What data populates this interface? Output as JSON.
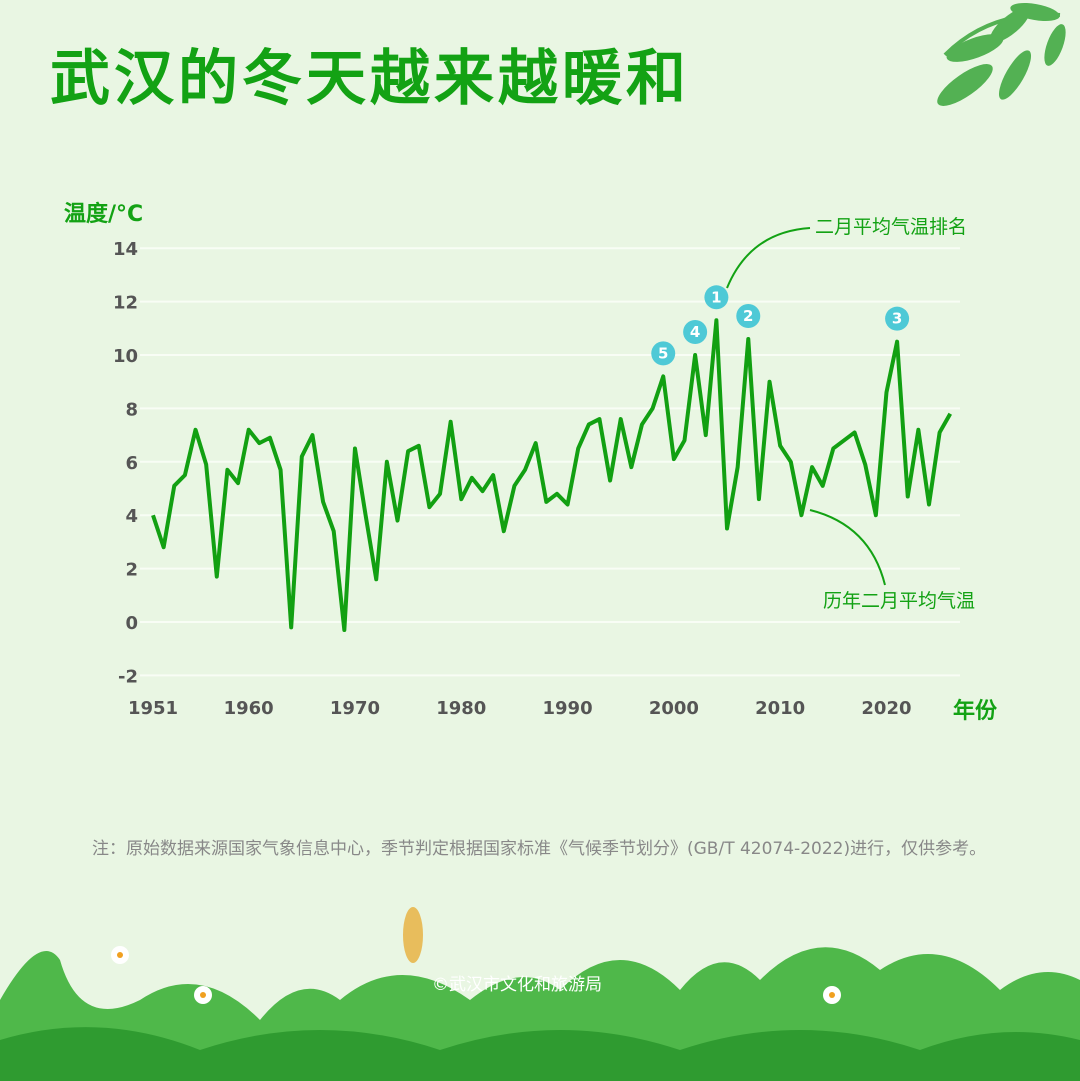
{
  "title": "武汉的冬天越来越暖和",
  "note": "注：原始数据来源国家气象信息中心，季节判定根据国家标准《气候季节划分》(GB/T 42074-2022)进行，仅供参考。",
  "credit": "©武汉市文化和旅游局",
  "colors": {
    "line": "#12a012",
    "rank": "#4ec9d6",
    "title": "#13a214"
  },
  "chart_data": {
    "type": "line",
    "title": "武汉的冬天越来越暖和",
    "xlabel": "年份",
    "ylabel": "温度/°C",
    "ylim": [
      -2,
      14
    ],
    "yticks": [
      "-2",
      "0",
      "2",
      "4",
      "6",
      "8",
      "10",
      "12",
      "14"
    ],
    "ytick_values": [
      -2,
      0,
      2,
      4,
      6,
      8,
      10,
      12,
      14
    ],
    "xticks": [
      "1951",
      "1960",
      "1970",
      "1980",
      "1990",
      "2000",
      "2010",
      "2020"
    ],
    "xtick_values": [
      1951,
      1960,
      1970,
      1980,
      1990,
      2000,
      2010,
      2020
    ],
    "grid": true,
    "series": [
      {
        "name": "历年二月平均气温",
        "x_start": 1951,
        "values": [
          4.0,
          2.8,
          5.1,
          5.5,
          7.2,
          5.9,
          1.7,
          5.7,
          5.2,
          7.2,
          6.7,
          6.9,
          5.7,
          -0.2,
          6.2,
          7.0,
          4.5,
          3.4,
          -0.3,
          6.5,
          4.0,
          1.6,
          6.0,
          3.8,
          6.4,
          6.6,
          4.3,
          4.8,
          7.5,
          4.6,
          5.4,
          4.9,
          5.5,
          3.4,
          5.1,
          5.7,
          6.7,
          4.5,
          4.8,
          4.4,
          6.5,
          7.4,
          7.6,
          5.3,
          7.6,
          5.8,
          7.4,
          8.0,
          9.2,
          6.1,
          6.8,
          10.0,
          7.0,
          11.3,
          3.5,
          5.8,
          10.6,
          4.6,
          9.0,
          6.6,
          6.0,
          4.0,
          5.8,
          5.1,
          6.5,
          6.8,
          7.1,
          5.9,
          4.0,
          8.6,
          10.5,
          4.7,
          7.2,
          4.4,
          7.1,
          7.8
        ]
      }
    ],
    "ranks": [
      {
        "label": "1",
        "index": 53
      },
      {
        "label": "2",
        "index": 56
      },
      {
        "label": "3",
        "index": 70
      },
      {
        "label": "4",
        "index": 51
      },
      {
        "label": "5",
        "index": 48
      }
    ],
    "annotations": {
      "rank_label": "二月平均气温排名",
      "series_label": "历年二月平均气温"
    }
  }
}
